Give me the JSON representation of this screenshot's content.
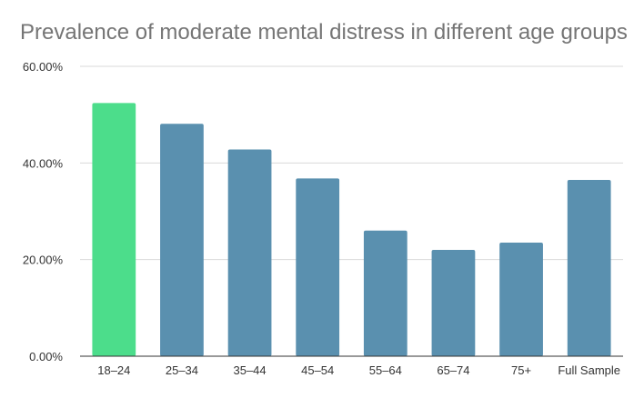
{
  "colors": {
    "highlight": "#4CDD8B",
    "bar": "#5A90AF",
    "grid": "#D9D9D9",
    "axis": "#333333"
  },
  "chart_data": {
    "type": "bar",
    "title": "Prevalence of moderate mental distress in different age groups",
    "xlabel": "",
    "ylabel": "",
    "categories": [
      "18–24",
      "25–34",
      "35–44",
      "45–54",
      "55–64",
      "65–74",
      "75+",
      "Full Sample"
    ],
    "values": [
      52.4,
      48.1,
      42.8,
      36.8,
      26.0,
      22.0,
      23.5,
      36.5
    ],
    "highlight_index": 0,
    "ylim": [
      0,
      60
    ],
    "yticks": [
      0,
      20,
      40,
      60
    ],
    "ytick_labels": [
      "0.00%",
      "20.00%",
      "40.00%",
      "60.00%"
    ],
    "grid": true,
    "legend": "none"
  }
}
